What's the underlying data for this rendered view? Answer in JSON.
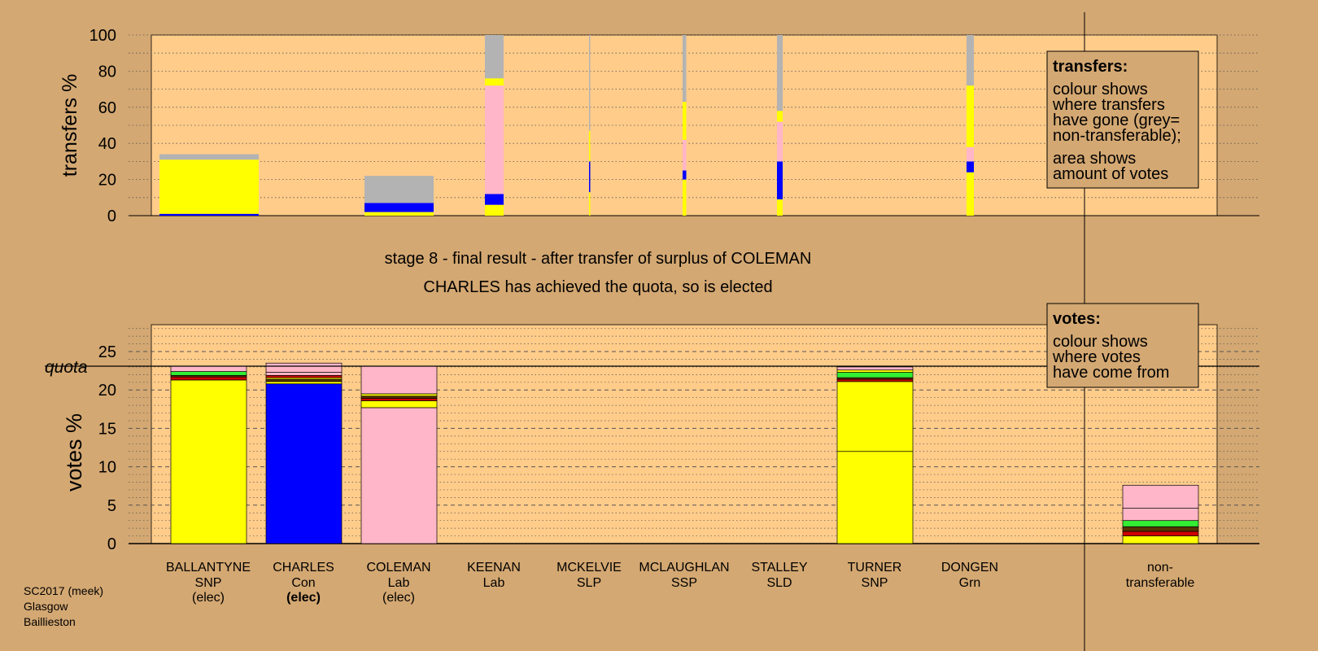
{
  "footer": {
    "line1": "SC2017 (meek)",
    "line2": "Glasgow",
    "line3": "Baillieston"
  },
  "captions": {
    "stage": "stage 8 - final result - after transfer of surplus of COLEMAN",
    "elected": "CHARLES has achieved the quota, so is elected"
  },
  "legend_transfers": {
    "title": "transfers:",
    "lines": [
      "colour shows",
      "where transfers",
      "have gone (grey=",
      "non-transferable);",
      "area shows",
      "amount of votes"
    ]
  },
  "legend_votes": {
    "title": "votes:",
    "lines": [
      "colour shows",
      "where votes",
      "have come from"
    ]
  },
  "colors": {
    "background": "#d4a872",
    "plot": "#ffcc8a",
    "SNP": "#ffff00",
    "Con": "#0000ff",
    "Lab": "#ffb6c8",
    "nontransferable": "#b3b3b3",
    "Grn": "#33ee33",
    "LD": "#cc0000",
    "other": "#553300"
  },
  "chart_data": [
    {
      "type": "bar",
      "name": "transfers",
      "ylabel": "transfers %",
      "ylim": [
        0,
        100
      ],
      "yticks": [
        0,
        20,
        40,
        60,
        80,
        100
      ],
      "grid": true,
      "columns": [
        {
          "key": "BALLANTYNE",
          "width_share": 0.34,
          "segments": [
            {
              "color": "#0000ff",
              "from": 0,
              "to": 1
            },
            {
              "color": "#ffff00",
              "from": 1,
              "to": 4
            },
            {
              "color": "#ffff00",
              "from": 4,
              "to": 31
            },
            {
              "color": "#b3b3b3",
              "from": 31,
              "to": 34
            }
          ]
        },
        {
          "key": "COLEMAN",
          "width_share": 0.27,
          "segments": [
            {
              "color": "#ffff00",
              "from": 0,
              "to": 2
            },
            {
              "color": "#0000ff",
              "from": 2,
              "to": 7
            },
            {
              "color": "#b3b3b3",
              "from": 7,
              "to": 22
            }
          ]
        },
        {
          "key": "KEENAN",
          "width_share": 0.06,
          "segments": [
            {
              "color": "#ffff00",
              "from": 0,
              "to": 6
            },
            {
              "color": "#0000ff",
              "from": 6,
              "to": 12
            },
            {
              "color": "#ffb6c8",
              "from": 12,
              "to": 72
            },
            {
              "color": "#ffff00",
              "from": 72,
              "to": 76
            },
            {
              "color": "#b3b3b3",
              "from": 76,
              "to": 100
            }
          ]
        },
        {
          "key": "MCKELVIE",
          "width_share": 0.004,
          "segments": [
            {
              "color": "#ffff00",
              "from": 0,
              "to": 13
            },
            {
              "color": "#0000ff",
              "from": 13,
              "to": 30
            },
            {
              "color": "#ffff00",
              "from": 30,
              "to": 47
            },
            {
              "color": "#b3b3b3",
              "from": 47,
              "to": 100
            }
          ]
        },
        {
          "key": "MCLAUGHLAN",
          "width_share": 0.012,
          "segments": [
            {
              "color": "#ffff00",
              "from": 0,
              "to": 20
            },
            {
              "color": "#0000ff",
              "from": 20,
              "to": 25
            },
            {
              "color": "#ffb6c8",
              "from": 25,
              "to": 42
            },
            {
              "color": "#ffff00",
              "from": 42,
              "to": 63
            },
            {
              "color": "#b3b3b3",
              "from": 63,
              "to": 100
            }
          ]
        },
        {
          "key": "STALLEY",
          "width_share": 0.02,
          "segments": [
            {
              "color": "#ffff00",
              "from": 0,
              "to": 9
            },
            {
              "color": "#0000ff",
              "from": 9,
              "to": 30
            },
            {
              "color": "#ffb6c8",
              "from": 30,
              "to": 52
            },
            {
              "color": "#ffff00",
              "from": 52,
              "to": 58
            },
            {
              "color": "#b3b3b3",
              "from": 58,
              "to": 100
            }
          ]
        },
        {
          "key": "DONGEN",
          "width_share": 0.024,
          "segments": [
            {
              "color": "#ffff00",
              "from": 0,
              "to": 24
            },
            {
              "color": "#0000ff",
              "from": 24,
              "to": 30
            },
            {
              "color": "#ffb6c8",
              "from": 30,
              "to": 38
            },
            {
              "color": "#ffff00",
              "from": 38,
              "to": 72
            },
            {
              "color": "#b3b3b3",
              "from": 72,
              "to": 100
            }
          ]
        }
      ]
    },
    {
      "type": "bar",
      "name": "votes",
      "ylabel": "votes %",
      "ylim": [
        0,
        28.5
      ],
      "yticks": [
        0,
        5,
        10,
        15,
        20,
        25
      ],
      "quota": 23.1,
      "quota_label": "quota",
      "grid": true,
      "categories": [
        {
          "name": "BALLANTYNE",
          "party": "SNP",
          "status": "(elec)",
          "bold": false
        },
        {
          "name": "CHARLES",
          "party": "Con",
          "status": "(elec)",
          "bold": true
        },
        {
          "name": "COLEMAN",
          "party": "Lab",
          "status": "(elec)",
          "bold": false
        },
        {
          "name": "KEENAN",
          "party": "Lab",
          "status": "",
          "bold": false
        },
        {
          "name": "MCKELVIE",
          "party": "SLP",
          "status": "",
          "bold": false
        },
        {
          "name": "MCLAUGHLAN",
          "party": "SSP",
          "status": "",
          "bold": false
        },
        {
          "name": "STALLEY",
          "party": "SLD",
          "status": "",
          "bold": false
        },
        {
          "name": "TURNER",
          "party": "SNP",
          "status": "",
          "bold": false
        },
        {
          "name": "DONGEN",
          "party": "Grn",
          "status": "",
          "bold": false
        }
      ],
      "nontransferable_label": [
        "non-",
        "transferable"
      ],
      "bars": [
        {
          "key": "BALLANTYNE",
          "segments": [
            {
              "color": "#ffff00",
              "from": 0,
              "to": 21.3
            },
            {
              "color": "#cc0000",
              "from": 21.3,
              "to": 21.7
            },
            {
              "color": "#553300",
              "from": 21.7,
              "to": 21.9
            },
            {
              "color": "#33ee33",
              "from": 21.9,
              "to": 22.4
            },
            {
              "color": "#ffb6c8",
              "from": 22.4,
              "to": 23.1
            }
          ]
        },
        {
          "key": "CHARLES",
          "segments": [
            {
              "color": "#0000ff",
              "from": 0,
              "to": 20.8
            },
            {
              "color": "#ffff00",
              "from": 20.8,
              "to": 21.1
            },
            {
              "color": "#553300",
              "from": 21.1,
              "to": 21.4
            },
            {
              "color": "#ffff00",
              "from": 21.4,
              "to": 21.6
            },
            {
              "color": "#cc0000",
              "from": 21.6,
              "to": 21.9
            },
            {
              "color": "#ffb6c8",
              "from": 21.9,
              "to": 22.3
            },
            {
              "color": "#ffb6c8",
              "from": 22.3,
              "to": 23.5
            }
          ]
        },
        {
          "key": "COLEMAN",
          "segments": [
            {
              "color": "#ffb6c8",
              "from": 0,
              "to": 17.7
            },
            {
              "color": "#ffff00",
              "from": 17.7,
              "to": 18.6
            },
            {
              "color": "#cc0000",
              "from": 18.6,
              "to": 18.9
            },
            {
              "color": "#553300",
              "from": 18.9,
              "to": 19.2
            },
            {
              "color": "#ffff00",
              "from": 19.2,
              "to": 19.5
            },
            {
              "color": "#ffb6c8",
              "from": 19.5,
              "to": 23.1
            }
          ]
        },
        {
          "key": "KEENAN",
          "segments": []
        },
        {
          "key": "MCKELVIE",
          "segments": []
        },
        {
          "key": "MCLAUGHLAN",
          "segments": []
        },
        {
          "key": "STALLEY",
          "segments": []
        },
        {
          "key": "TURNER",
          "segments": [
            {
              "color": "#ffff00",
              "from": 0,
              "to": 12
            },
            {
              "color": "#ffff00",
              "from": 12,
              "to": 21.1
            },
            {
              "color": "#cc0000",
              "from": 21.1,
              "to": 21.4
            },
            {
              "color": "#553300",
              "from": 21.4,
              "to": 21.6
            },
            {
              "color": "#33ee33",
              "from": 21.6,
              "to": 22.3
            },
            {
              "color": "#ffff00",
              "from": 22.3,
              "to": 22.6
            },
            {
              "color": "#ffb6c8",
              "from": 22.6,
              "to": 23.0
            }
          ]
        },
        {
          "key": "DONGEN",
          "segments": []
        },
        {
          "key": "non-transferable",
          "segments": [
            {
              "color": "#ffff00",
              "from": 0,
              "to": 1.0
            },
            {
              "color": "#cc0000",
              "from": 1.0,
              "to": 1.6
            },
            {
              "color": "#553300",
              "from": 1.6,
              "to": 2.2
            },
            {
              "color": "#33ee33",
              "from": 2.2,
              "to": 3.0
            },
            {
              "color": "#ffb6c8",
              "from": 3.0,
              "to": 4.6
            },
            {
              "color": "#ffb6c8",
              "from": 4.6,
              "to": 7.6
            }
          ]
        }
      ]
    }
  ]
}
